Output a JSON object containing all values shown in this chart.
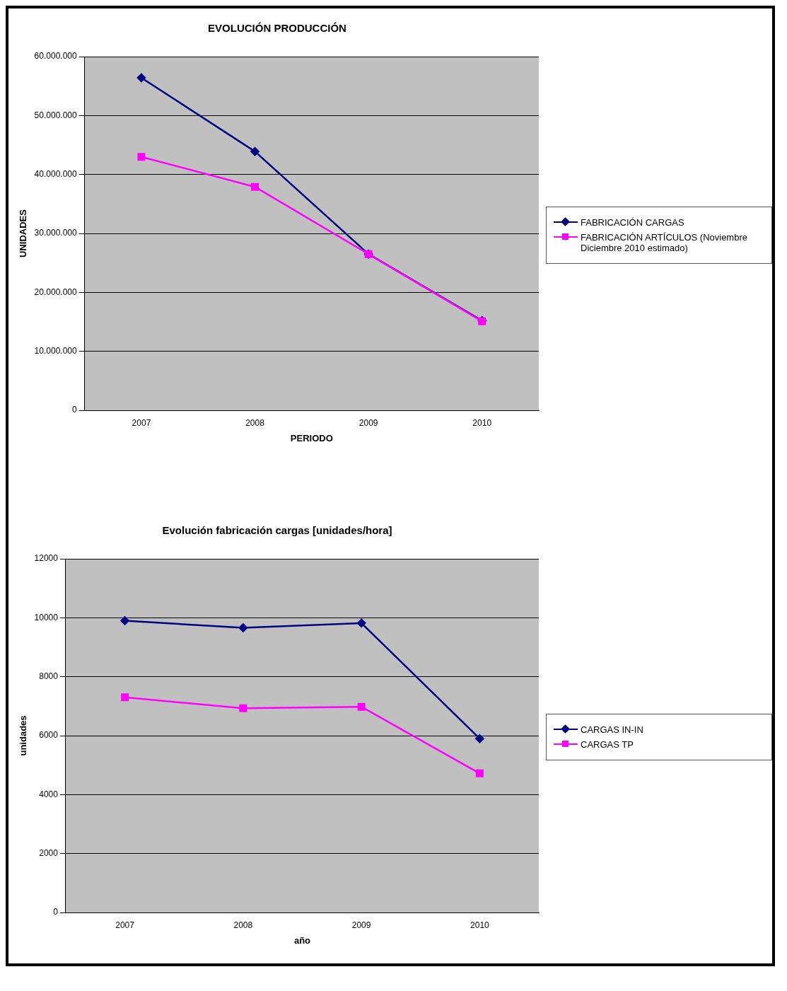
{
  "chart_data": [
    {
      "type": "line",
      "title": "EVOLUCIÓN PRODUCCIÓN",
      "xlabel": "PERIODO",
      "ylabel": "UNIDADES",
      "categories": [
        "2007",
        "2008",
        "2009",
        "2010"
      ],
      "series": [
        {
          "name": "FABRICACIÓN CARGAS",
          "color": "#000080",
          "marker": "diamond",
          "values": [
            56400000,
            43900000,
            26500000,
            15200000
          ]
        },
        {
          "name": "FABRICACIÓN ARTÍCULOS (Noviembre Diciembre 2010 estimado)",
          "color": "#ff00ff",
          "marker": "square",
          "values": [
            43000000,
            37900000,
            26500000,
            15100000
          ]
        }
      ],
      "ylim": [
        0,
        60000000
      ],
      "yticks": [
        0,
        {
          "value": 10000000,
          "label": "10.000.000"
        },
        {
          "value": 20000000,
          "label": "20.000.000"
        },
        {
          "value": 30000000,
          "label": "30.000.000"
        },
        {
          "value": 40000000,
          "label": "40.000.000"
        },
        {
          "value": 50000000,
          "label": "50.000.000"
        },
        {
          "value": 60000000,
          "label": "60.000.000"
        }
      ],
      "grid": "y",
      "legend": "right",
      "line_style": "solid"
    },
    {
      "type": "line",
      "title": "Evolución fabricación cargas [unidades/hora]",
      "xlabel": "año",
      "ylabel": "unidades",
      "categories": [
        "2007",
        "2008",
        "2009",
        "2010"
      ],
      "series": [
        {
          "name": "CARGAS IN-IN",
          "color": "#000080",
          "marker": "diamond",
          "values": [
            9900,
            9660,
            9820,
            5900
          ]
        },
        {
          "name": "CARGAS TP",
          "color": "#ff00ff",
          "marker": "square",
          "values": [
            7300,
            6930,
            6980,
            4720
          ]
        }
      ],
      "ylim": [
        0,
        12000
      ],
      "yticks": [
        0,
        2000,
        4000,
        6000,
        8000,
        10000,
        12000
      ],
      "grid": "y",
      "legend": "right",
      "line_style": "solid"
    }
  ]
}
